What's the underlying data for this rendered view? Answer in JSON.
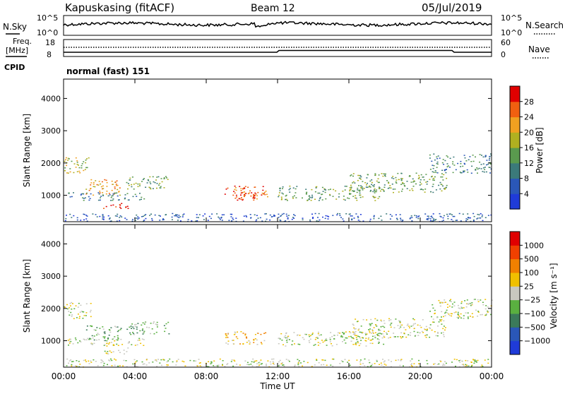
{
  "header": {
    "station": "Kapuskasing (fitACF)",
    "beam": "Beam 12",
    "date": "05/Jul/2019"
  },
  "top_panel": {
    "left_label": "N.Sky",
    "right_label": "N.Search",
    "left_ticks": [
      "10^5",
      "10^0"
    ],
    "right_ticks": [
      "10^5",
      "10^0"
    ]
  },
  "freq_panel": {
    "left_label_1": "Freq.",
    "left_label_2": "[MHz]",
    "right_label": "Nave",
    "left_ticks": [
      "18",
      "8"
    ],
    "right_ticks": [
      "60",
      "0"
    ]
  },
  "cpid": {
    "label": "CPID",
    "value": "normal (fast) 151"
  },
  "chart_data": [
    {
      "type": "heatmap",
      "title": "",
      "ylabel": "Slant Range [km]",
      "xlabel": "",
      "ylim": [
        180,
        4600
      ],
      "xlim": [
        0,
        24
      ],
      "y_ticks": [
        "1000",
        "2000",
        "3000",
        "4000"
      ],
      "colorbar_label": "Power [dB]",
      "colorbar_ticks": [
        "4",
        "8",
        "12",
        "16",
        "20",
        "24",
        "28"
      ],
      "colors": [
        "#1f3bd8",
        "#2a57b8",
        "#3b7a7a",
        "#5a9a4e",
        "#b0b020",
        "#f0a020",
        "#f06010",
        "#e00000"
      ],
      "regions": [
        {
          "t0": 0.0,
          "t1": 1.5,
          "r0": 1700,
          "r1": 2200,
          "level": 4
        },
        {
          "t0": 1.2,
          "t1": 3.2,
          "r0": 1000,
          "r1": 1500,
          "level": 5
        },
        {
          "t0": 2.2,
          "t1": 3.6,
          "r0": 600,
          "r1": 800,
          "level": 7
        },
        {
          "t0": 3.5,
          "t1": 6.0,
          "r0": 1200,
          "r1": 1600,
          "level": 3
        },
        {
          "t0": 0.2,
          "t1": 4.5,
          "r0": 850,
          "r1": 1100,
          "level": 2
        },
        {
          "t0": 9.0,
          "t1": 11.5,
          "r0": 850,
          "r1": 1300,
          "level": 6
        },
        {
          "t0": 9.5,
          "t1": 10.8,
          "r0": 900,
          "r1": 1100,
          "level": 7
        },
        {
          "t0": 12.0,
          "t1": 18.0,
          "r0": 850,
          "r1": 1300,
          "level": 3
        },
        {
          "t0": 16.0,
          "t1": 21.5,
          "r0": 1100,
          "r1": 1700,
          "level": 3
        },
        {
          "t0": 20.5,
          "t1": 24.0,
          "r0": 1700,
          "r1": 2300,
          "level": 2
        },
        {
          "t0": 0.0,
          "t1": 24.0,
          "r0": 200,
          "r1": 450,
          "level": 1
        }
      ]
    },
    {
      "type": "heatmap",
      "title": "",
      "ylabel": "Slant Range [km]",
      "xlabel": "Time UT",
      "ylim": [
        180,
        4600
      ],
      "xlim": [
        0,
        24
      ],
      "y_ticks": [
        "1000",
        "2000",
        "3000",
        "4000"
      ],
      "x_ticks": [
        "00:00",
        "04:00",
        "08:00",
        "12:00",
        "16:00",
        "20:00",
        "00:00"
      ],
      "colorbar_label": "Velocity [m s⁻¹]",
      "colorbar_ticks": [
        "1000",
        "500",
        "100",
        "25",
        "−25",
        "−100",
        "−500",
        "−1000"
      ],
      "colors": [
        "#1f3bd8",
        "#2a57b8",
        "#3b7a5a",
        "#5ab040",
        "#c8c8c0",
        "#f0c000",
        "#f08000",
        "#f04000",
        "#e00000"
      ],
      "regions": [
        {
          "t0": 0.0,
          "t1": 1.5,
          "r0": 1700,
          "r1": 2200,
          "level": 4
        },
        {
          "t0": 1.2,
          "t1": 3.2,
          "r0": 1000,
          "r1": 1500,
          "level": 3
        },
        {
          "t0": 2.2,
          "t1": 3.6,
          "r0": 600,
          "r1": 800,
          "level": 4
        },
        {
          "t0": 3.5,
          "t1": 6.0,
          "r0": 1200,
          "r1": 1600,
          "level": 3
        },
        {
          "t0": 0.2,
          "t1": 4.5,
          "r0": 850,
          "r1": 1100,
          "level": 4
        },
        {
          "t0": 9.0,
          "t1": 11.5,
          "r0": 900,
          "r1": 1300,
          "level": 5
        },
        {
          "t0": 12.0,
          "t1": 18.0,
          "r0": 850,
          "r1": 1300,
          "level": 4
        },
        {
          "t0": 16.0,
          "t1": 21.5,
          "r0": 1100,
          "r1": 1700,
          "level": 4
        },
        {
          "t0": 20.5,
          "t1": 24.0,
          "r0": 1700,
          "r1": 2300,
          "level": 4
        },
        {
          "t0": 0.0,
          "t1": 24.0,
          "r0": 200,
          "r1": 450,
          "level": 4
        }
      ]
    }
  ]
}
